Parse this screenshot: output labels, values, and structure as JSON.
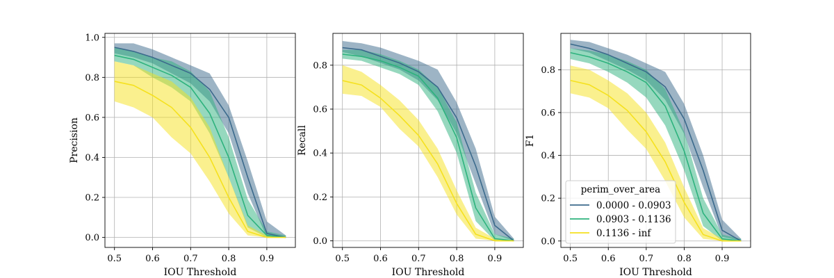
{
  "chart_data": {
    "type": "line",
    "x_label": "IOU Threshold",
    "legend": {
      "title": "perim_over_area",
      "placement": "lower-left (third panel)"
    },
    "x": [
      0.5,
      0.55,
      0.6,
      0.65,
      0.7,
      0.75,
      0.8,
      0.85,
      0.9,
      0.95
    ],
    "x_ticks": [
      "0.5",
      "0.6",
      "0.7",
      "0.8",
      "0.9"
    ],
    "x_tick_values": [
      0.5,
      0.6,
      0.7,
      0.8,
      0.9
    ],
    "xlim": [
      0.475,
      0.975
    ],
    "series_styles": [
      {
        "name": "0.0000 - 0.0903",
        "color": "#3b6a8c"
      },
      {
        "name": "0.0903 - 0.1136",
        "color": "#2db27d"
      },
      {
        "name": "0.1136 - inf",
        "color": "#f5e11e"
      }
    ],
    "panels": [
      {
        "ylabel": "Precision",
        "ylim": [
          -0.05,
          1.02
        ],
        "y_ticks": [
          "0.0",
          "0.2",
          "0.4",
          "0.6",
          "0.8",
          "1.0"
        ],
        "y_tick_values": [
          0.0,
          0.2,
          0.4,
          0.6,
          0.8,
          1.0
        ],
        "series": [
          {
            "name": "0.0000 - 0.0903",
            "values": [
              0.95,
              0.93,
              0.9,
              0.86,
              0.82,
              0.74,
              0.6,
              0.3,
              0.02,
              0.0
            ],
            "lower": [
              0.92,
              0.9,
              0.87,
              0.82,
              0.77,
              0.68,
              0.52,
              0.22,
              0.0,
              0.0
            ],
            "upper": [
              0.97,
              0.97,
              0.94,
              0.9,
              0.86,
              0.82,
              0.66,
              0.38,
              0.08,
              0.01
            ]
          },
          {
            "name": "0.0903 - 0.1136",
            "values": [
              0.91,
              0.89,
              0.85,
              0.81,
              0.75,
              0.62,
              0.4,
              0.11,
              0.01,
              0.0
            ],
            "lower": [
              0.88,
              0.86,
              0.8,
              0.75,
              0.68,
              0.52,
              0.3,
              0.05,
              0.0,
              0.0
            ],
            "upper": [
              0.95,
              0.93,
              0.9,
              0.88,
              0.83,
              0.73,
              0.5,
              0.19,
              0.03,
              0.01
            ]
          },
          {
            "name": "0.1136 - inf",
            "values": [
              0.78,
              0.76,
              0.71,
              0.65,
              0.55,
              0.4,
              0.2,
              0.03,
              0.0,
              0.0
            ],
            "lower": [
              0.68,
              0.65,
              0.6,
              0.5,
              0.42,
              0.28,
              0.12,
              0.01,
              0.0,
              0.0
            ],
            "upper": [
              0.88,
              0.86,
              0.82,
              0.78,
              0.7,
              0.55,
              0.3,
              0.06,
              0.01,
              0.0
            ]
          }
        ]
      },
      {
        "ylabel": "Recall",
        "ylim": [
          -0.03,
          0.945
        ],
        "y_ticks": [
          "0.0",
          "0.2",
          "0.4",
          "0.6",
          "0.8"
        ],
        "y_tick_values": [
          0.0,
          0.2,
          0.4,
          0.6,
          0.8
        ],
        "series": [
          {
            "name": "0.0000 - 0.0903",
            "values": [
              0.88,
              0.87,
              0.84,
              0.81,
              0.77,
              0.7,
              0.56,
              0.34,
              0.07,
              0.0
            ],
            "lower": [
              0.86,
              0.84,
              0.81,
              0.78,
              0.73,
              0.64,
              0.49,
              0.26,
              0.03,
              0.0
            ],
            "upper": [
              0.91,
              0.9,
              0.88,
              0.85,
              0.82,
              0.78,
              0.63,
              0.42,
              0.11,
              0.01
            ]
          },
          {
            "name": "0.0903 - 0.1136",
            "values": [
              0.85,
              0.84,
              0.82,
              0.79,
              0.75,
              0.65,
              0.47,
              0.15,
              0.01,
              0.0
            ],
            "lower": [
              0.83,
              0.82,
              0.79,
              0.76,
              0.71,
              0.59,
              0.4,
              0.09,
              0.0,
              0.0
            ],
            "upper": [
              0.87,
              0.87,
              0.85,
              0.82,
              0.78,
              0.7,
              0.54,
              0.22,
              0.03,
              0.01
            ]
          },
          {
            "name": "0.1136 - inf",
            "values": [
              0.73,
              0.71,
              0.65,
              0.57,
              0.48,
              0.35,
              0.17,
              0.03,
              0.0,
              0.0
            ],
            "lower": [
              0.67,
              0.66,
              0.61,
              0.51,
              0.43,
              0.29,
              0.12,
              0.01,
              0.0,
              0.0
            ],
            "upper": [
              0.8,
              0.77,
              0.71,
              0.64,
              0.55,
              0.42,
              0.23,
              0.06,
              0.01,
              0.0
            ]
          }
        ]
      },
      {
        "ylabel": "F1",
        "ylim": [
          -0.03,
          0.97
        ],
        "y_ticks": [
          "0.0",
          "0.2",
          "0.4",
          "0.6",
          "0.8"
        ],
        "y_tick_values": [
          0.0,
          0.2,
          0.4,
          0.6,
          0.8
        ],
        "series": [
          {
            "name": "0.0000 - 0.0903",
            "values": [
              0.92,
              0.9,
              0.87,
              0.83,
              0.79,
              0.72,
              0.57,
              0.33,
              0.05,
              0.0
            ],
            "lower": [
              0.9,
              0.88,
              0.84,
              0.8,
              0.75,
              0.66,
              0.5,
              0.25,
              0.02,
              0.0
            ],
            "upper": [
              0.94,
              0.93,
              0.9,
              0.87,
              0.83,
              0.79,
              0.64,
              0.4,
              0.1,
              0.01
            ]
          },
          {
            "name": "0.0903 - 0.1136",
            "values": [
              0.88,
              0.86,
              0.83,
              0.79,
              0.74,
              0.63,
              0.42,
              0.13,
              0.01,
              0.0
            ],
            "lower": [
              0.85,
              0.83,
              0.79,
              0.74,
              0.67,
              0.54,
              0.33,
              0.07,
              0.0,
              0.0
            ],
            "upper": [
              0.9,
              0.89,
              0.87,
              0.84,
              0.8,
              0.71,
              0.51,
              0.2,
              0.03,
              0.01
            ]
          },
          {
            "name": "0.1136 - inf",
            "values": [
              0.75,
              0.73,
              0.68,
              0.61,
              0.51,
              0.37,
              0.18,
              0.03,
              0.0,
              0.0
            ],
            "lower": [
              0.69,
              0.67,
              0.62,
              0.52,
              0.43,
              0.28,
              0.11,
              0.01,
              0.0,
              0.0
            ],
            "upper": [
              0.82,
              0.8,
              0.75,
              0.69,
              0.6,
              0.46,
              0.25,
              0.06,
              0.01,
              0.0
            ]
          }
        ]
      }
    ]
  }
}
